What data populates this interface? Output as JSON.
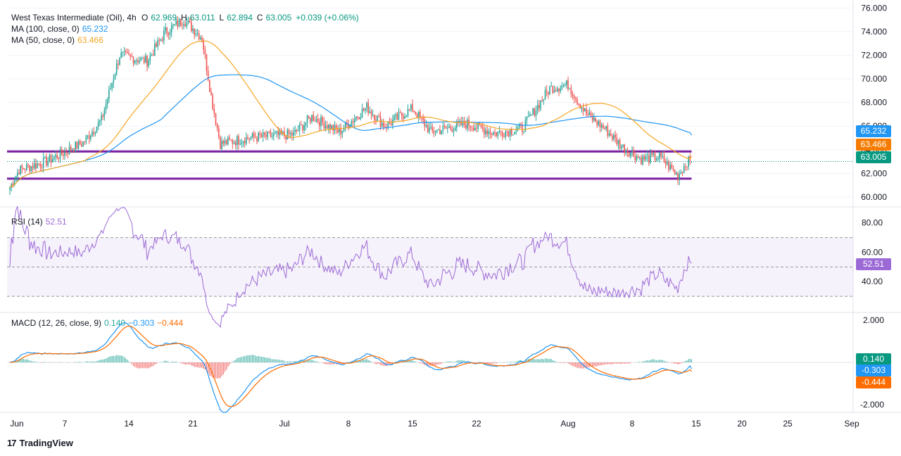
{
  "colors": {
    "up": "#26a69a",
    "down": "#ef5350",
    "ma100": "#2196f3",
    "ma50": "#f5a623",
    "support": "#7b1fa2",
    "rsi": "#9c6ad6",
    "macd": "#2196f3",
    "signal": "#ff6d00",
    "price_tag": "#089981"
  },
  "header": {
    "symbol": "West Texas Intermediate (Oil), 4h",
    "o_label": "O",
    "o_value": "62.969",
    "h_label": "H",
    "h_value": "63.011",
    "l_label": "L",
    "l_value": "62.894",
    "c_label": "C",
    "c_value": "63.005",
    "change": "+0.039 (+0.06%)",
    "ma100_label": "MA (100, close, 0)",
    "ma100_value": "65.232",
    "ma50_label": "MA (50, close, 0)",
    "ma50_value": "63.466"
  },
  "rsi_panel": {
    "label": "RSI (14)",
    "value": "52.51"
  },
  "macd_panel": {
    "label": "MACD (12, 26, close, 9)",
    "hist_value": "0.140",
    "macd_value": "−0.303",
    "signal_value": "−0.444"
  },
  "price_tags": {
    "ma100": "65.232",
    "ma50": "63.466",
    "close": "63.005"
  },
  "rsi_tag": "52.51",
  "macd_tags": {
    "hist": "0.140",
    "macd": "-0.303",
    "signal": "-0.444"
  },
  "brand": {
    "logo": "17",
    "name": "TradingView"
  },
  "chart_data": [
    {
      "type": "candlestick",
      "title": "West Texas Intermediate (Oil), 4h",
      "x_axis_labels": [
        "Jun",
        "7",
        "14",
        "21",
        "Jul",
        "8",
        "15",
        "22",
        "Aug",
        "8",
        "15",
        "20",
        "25",
        "Sep"
      ],
      "y_tick_labels": [
        "60.000",
        "62.000",
        "64.000",
        "66.000",
        "68.000",
        "70.000",
        "72.000",
        "74.000",
        "76.000"
      ],
      "ylim": [
        59.4,
        76.2
      ],
      "anchors_close": [
        [
          "2025-06-01",
          60.8
        ],
        [
          "2025-06-02",
          62.3
        ],
        [
          "2025-06-05",
          63.0
        ],
        [
          "2025-06-09",
          64.6
        ],
        [
          "2025-06-11",
          66.5
        ],
        [
          "2025-06-13",
          72.0
        ],
        [
          "2025-06-16",
          71.5
        ],
        [
          "2025-06-18",
          74.0
        ],
        [
          "2025-06-20",
          75.0
        ],
        [
          "2025-06-22",
          73.5
        ],
        [
          "2025-06-23",
          68.5
        ],
        [
          "2025-06-24",
          64.5
        ],
        [
          "2025-06-27",
          65.0
        ],
        [
          "2025-07-02",
          65.3
        ],
        [
          "2025-07-04",
          66.8
        ],
        [
          "2025-07-07",
          65.5
        ],
        [
          "2025-07-10",
          67.6
        ],
        [
          "2025-07-12",
          66.0
        ],
        [
          "2025-07-15",
          67.5
        ],
        [
          "2025-07-17",
          65.5
        ],
        [
          "2025-07-21",
          66.2
        ],
        [
          "2025-07-24",
          65.4
        ],
        [
          "2025-07-27",
          65.8
        ],
        [
          "2025-07-30",
          69.2
        ],
        [
          "2025-08-01",
          69.5
        ],
        [
          "2025-08-03",
          67.0
        ],
        [
          "2025-08-05",
          65.8
        ],
        [
          "2025-08-07",
          64.2
        ],
        [
          "2025-08-09",
          63.2
        ],
        [
          "2025-08-11",
          63.4
        ],
        [
          "2025-08-13",
          61.8
        ],
        [
          "2025-08-14",
          63.005
        ]
      ],
      "horizontal_lines": [
        63.85,
        61.55
      ],
      "series": [
        {
          "name": "MA (100, close, 0)",
          "last": 65.232
        },
        {
          "name": "MA (50, close, 0)",
          "last": 63.466
        }
      ]
    },
    {
      "type": "line",
      "title": "RSI (14)",
      "y_tick_labels": [
        "40.00",
        "60.00",
        "80.00"
      ],
      "ylim": [
        20,
        88
      ],
      "bands": [
        70,
        50,
        30
      ],
      "last": 52.51
    },
    {
      "type": "line",
      "title": "MACD (12, 26, close, 9)",
      "y_tick_labels": [
        "-2.000",
        "2.000"
      ],
      "ylim": [
        -2.3,
        2.3
      ],
      "series": [
        {
          "name": "histogram",
          "last": 0.14
        },
        {
          "name": "MACD",
          "last": -0.303
        },
        {
          "name": "signal",
          "last": -0.444
        }
      ]
    }
  ]
}
